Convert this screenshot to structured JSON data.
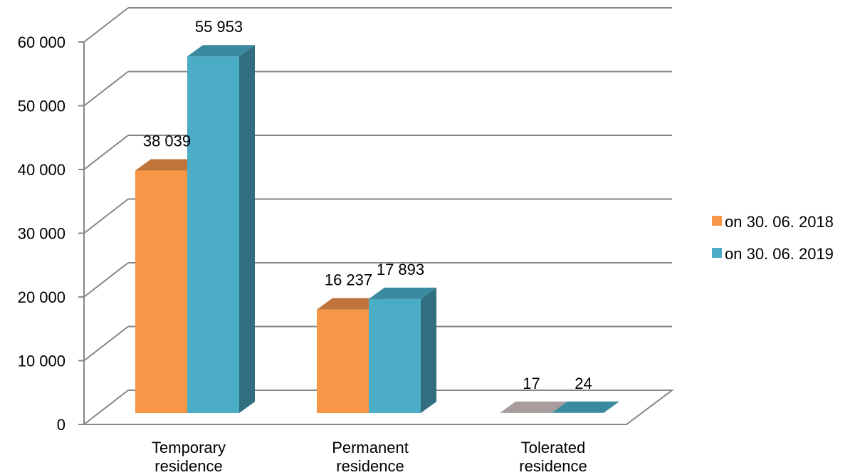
{
  "chart_data": {
    "type": "bar",
    "categories": [
      [
        "Temporary",
        "residence"
      ],
      [
        "Permanent",
        "residence"
      ],
      [
        "Tolerated",
        "residence"
      ]
    ],
    "series": [
      {
        "name": "on 30. 06. 2018",
        "values": [
          38039,
          16237,
          17
        ],
        "labels": [
          "38 039",
          "16 237",
          "17"
        ],
        "colors": {
          "front": "#F79646",
          "top": "#C0743A",
          "side": "#B86A2C"
        }
      },
      {
        "name": "on 30. 06. 2019",
        "values": [
          55953,
          17893,
          24
        ],
        "labels": [
          "55 953",
          "17 893",
          "24"
        ],
        "colors": {
          "front": "#4BACC6",
          "top": "#3A8AA0",
          "side": "#306E80"
        }
      }
    ],
    "ylim": [
      0,
      60000
    ],
    "yticks": [
      {
        "value": 0,
        "label": "0"
      },
      {
        "value": 10000,
        "label": "10 000"
      },
      {
        "value": 20000,
        "label": "20 000"
      },
      {
        "value": 30000,
        "label": "30 000"
      },
      {
        "value": 40000,
        "label": "40 000"
      },
      {
        "value": 50000,
        "label": "50 000"
      },
      {
        "value": 60000,
        "label": "60 000"
      }
    ],
    "grid": true,
    "legend_position": "right",
    "title": "",
    "xlabel": "",
    "ylabel": ""
  }
}
